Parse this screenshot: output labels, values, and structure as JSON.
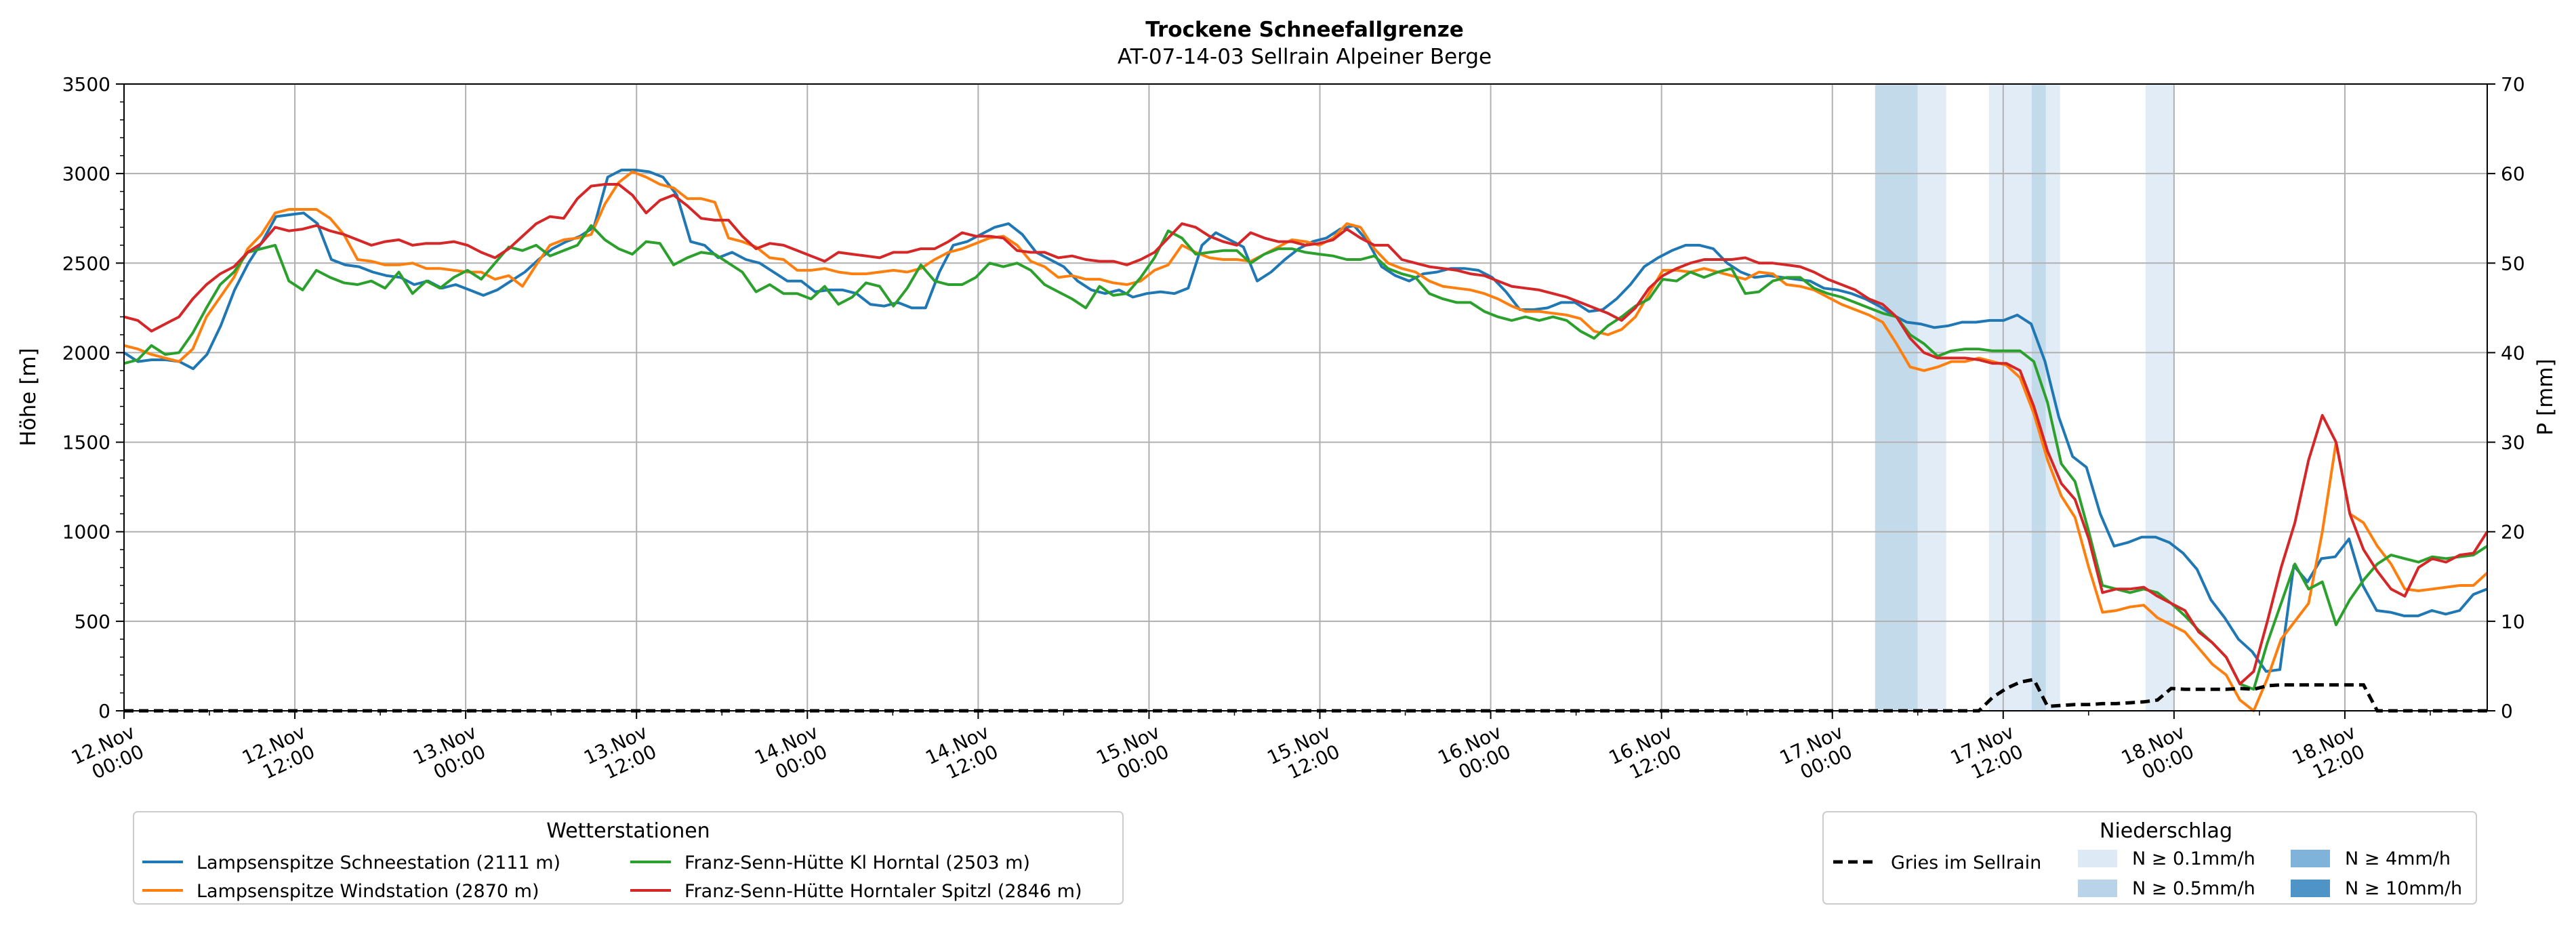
{
  "chart_data": {
    "type": "line",
    "title": "Trockene Schneefallgrenze",
    "subtitle": "AT-07-14-03 Sellrain Alpeiner Berge",
    "ylabel": "Höhe [m]",
    "ylabel_right": "P [mm]",
    "ylim": [
      0,
      3500
    ],
    "ylim_right": [
      0,
      70
    ],
    "yticks": [
      0,
      500,
      1000,
      1500,
      2000,
      2500,
      3000,
      3500
    ],
    "yticks_right": [
      0,
      10,
      20,
      30,
      40,
      50,
      60,
      70
    ],
    "x_start": "12.Nov 00:00",
    "x_end": "18.Nov 22:00",
    "x_hours_total": 166,
    "x_tick_labels": [
      [
        "12.Nov",
        "00:00"
      ],
      [
        "12.Nov",
        "12:00"
      ],
      [
        "13.Nov",
        "00:00"
      ],
      [
        "13.Nov",
        "12:00"
      ],
      [
        "14.Nov",
        "00:00"
      ],
      [
        "14.Nov",
        "12:00"
      ],
      [
        "15.Nov",
        "00:00"
      ],
      [
        "15.Nov",
        "12:00"
      ],
      [
        "16.Nov",
        "00:00"
      ],
      [
        "16.Nov",
        "12:00"
      ],
      [
        "17.Nov",
        "00:00"
      ],
      [
        "17.Nov",
        "12:00"
      ],
      [
        "18.Nov",
        "00:00"
      ],
      [
        "18.Nov",
        "12:00"
      ]
    ],
    "grid": true,
    "legend_placement": "bottom-left",
    "legend_title": "Wetterstationen",
    "series": [
      {
        "name": "Lampsenspitze Schneestation (2111 m)",
        "color": "#1f77b4",
        "values": [
          2000,
          1950,
          1960,
          1960,
          1950,
          1910,
          1990,
          2150,
          2350,
          2500,
          2620,
          2760,
          2770,
          2780,
          2720,
          2520,
          2490,
          2480,
          2450,
          2430,
          2420,
          2380,
          2400,
          2360,
          2380,
          2350,
          2320,
          2350,
          2400,
          2450,
          2520,
          2580,
          2620,
          2650,
          2700,
          2980,
          3020,
          3020,
          3010,
          2980,
          2880,
          2620,
          2600,
          2530,
          2560,
          2520,
          2500,
          2450,
          2400,
          2400,
          2340,
          2350,
          2350,
          2330,
          2270,
          2260,
          2280,
          2250,
          2250,
          2450,
          2600,
          2620,
          2660,
          2700,
          2720,
          2660,
          2560,
          2520,
          2480,
          2400,
          2350,
          2330,
          2350,
          2310,
          2330,
          2340,
          2330,
          2360,
          2600,
          2670,
          2630,
          2590,
          2400,
          2450,
          2520,
          2580,
          2620,
          2640,
          2690,
          2710,
          2620,
          2480,
          2430,
          2400,
          2440,
          2450,
          2470,
          2470,
          2460,
          2420,
          2340,
          2240,
          2240,
          2250,
          2280,
          2280,
          2230,
          2240,
          2300,
          2380,
          2480,
          2530,
          2570,
          2600,
          2600,
          2580,
          2500,
          2450,
          2420,
          2430,
          2420,
          2410,
          2400,
          2360,
          2350,
          2330,
          2300,
          2260,
          2210,
          2170,
          2160,
          2140,
          2150,
          2170,
          2170,
          2180,
          2180,
          2210,
          2160,
          1950,
          1640,
          1420,
          1360,
          1100,
          920,
          940,
          970,
          970,
          940,
          880,
          790,
          620,
          520,
          400,
          330,
          220,
          230,
          810,
          720,
          850,
          860,
          960,
          700,
          560,
          550,
          530,
          530,
          560,
          540,
          560,
          650,
          680
        ]
      },
      {
        "name": "Lampsenspitze Windstation (2870 m)",
        "color": "#ff7f0e",
        "values": [
          2040,
          2020,
          1990,
          1970,
          1950,
          2020,
          2200,
          2310,
          2420,
          2580,
          2660,
          2780,
          2800,
          2800,
          2800,
          2750,
          2660,
          2520,
          2510,
          2490,
          2490,
          2500,
          2470,
          2470,
          2460,
          2450,
          2450,
          2410,
          2430,
          2370,
          2490,
          2600,
          2630,
          2640,
          2660,
          2830,
          2950,
          3010,
          2980,
          2940,
          2920,
          2860,
          2860,
          2840,
          2640,
          2620,
          2590,
          2530,
          2520,
          2460,
          2460,
          2470,
          2450,
          2440,
          2440,
          2450,
          2460,
          2450,
          2470,
          2520,
          2560,
          2580,
          2610,
          2640,
          2650,
          2600,
          2510,
          2480,
          2420,
          2430,
          2410,
          2410,
          2390,
          2380,
          2400,
          2460,
          2490,
          2600,
          2560,
          2530,
          2520,
          2520,
          2510,
          2550,
          2590,
          2630,
          2620,
          2600,
          2640,
          2720,
          2700,
          2580,
          2500,
          2470,
          2450,
          2400,
          2370,
          2360,
          2350,
          2330,
          2300,
          2260,
          2230,
          2230,
          2220,
          2210,
          2190,
          2120,
          2100,
          2130,
          2200,
          2330,
          2460,
          2460,
          2450,
          2470,
          2450,
          2430,
          2410,
          2450,
          2440,
          2380,
          2370,
          2350,
          2310,
          2270,
          2240,
          2210,
          2170,
          2050,
          1920,
          1900,
          1920,
          1950,
          1950,
          1970,
          1950,
          1930,
          1860,
          1660,
          1400,
          1200,
          1080,
          800,
          550,
          560,
          580,
          590,
          520,
          480,
          440,
          350,
          260,
          200,
          60,
          0,
          180,
          400,
          500,
          600,
          1000,
          1500,
          1100,
          1050,
          920,
          820,
          680,
          670,
          680,
          690,
          700,
          700,
          770
        ]
      },
      {
        "name": "Franz-Senn-Hütte Kl Horntal (2503 m)",
        "color": "#2ca02c",
        "values": [
          1940,
          1960,
          2040,
          1990,
          2000,
          2110,
          2250,
          2380,
          2450,
          2560,
          2580,
          2600,
          2400,
          2350,
          2460,
          2420,
          2390,
          2380,
          2400,
          2360,
          2450,
          2330,
          2400,
          2360,
          2420,
          2460,
          2410,
          2500,
          2590,
          2570,
          2600,
          2540,
          2570,
          2600,
          2710,
          2630,
          2580,
          2550,
          2620,
          2610,
          2490,
          2530,
          2560,
          2550,
          2500,
          2450,
          2340,
          2380,
          2330,
          2330,
          2300,
          2370,
          2270,
          2310,
          2390,
          2370,
          2260,
          2360,
          2490,
          2400,
          2380,
          2380,
          2420,
          2500,
          2480,
          2500,
          2460,
          2380,
          2340,
          2300,
          2250,
          2370,
          2320,
          2330,
          2420,
          2530,
          2680,
          2640,
          2550,
          2560,
          2570,
          2570,
          2500,
          2550,
          2580,
          2580,
          2560,
          2550,
          2540,
          2520,
          2520,
          2540,
          2470,
          2440,
          2420,
          2330,
          2300,
          2280,
          2280,
          2230,
          2200,
          2180,
          2200,
          2180,
          2200,
          2180,
          2120,
          2080,
          2150,
          2200,
          2260,
          2300,
          2410,
          2400,
          2450,
          2420,
          2450,
          2470,
          2330,
          2340,
          2400,
          2420,
          2420,
          2360,
          2330,
          2310,
          2280,
          2250,
          2220,
          2200,
          2100,
          2050,
          1980,
          2010,
          2020,
          2020,
          2010,
          2010,
          2010,
          1950,
          1720,
          1380,
          1280,
          1000,
          700,
          680,
          660,
          680,
          660,
          600,
          530,
          450,
          380,
          300,
          150,
          120,
          380,
          600,
          820,
          680,
          720,
          480,
          620,
          730,
          820,
          870,
          850,
          830,
          860,
          850,
          860,
          870,
          920
        ]
      },
      {
        "name": "Franz-Senn-Hütte Horntaler Spitzl (2846 m)",
        "color": "#d62728",
        "values": [
          2200,
          2180,
          2120,
          2160,
          2200,
          2300,
          2380,
          2440,
          2480,
          2560,
          2610,
          2700,
          2680,
          2690,
          2710,
          2680,
          2660,
          2630,
          2600,
          2620,
          2630,
          2600,
          2610,
          2610,
          2620,
          2600,
          2560,
          2530,
          2580,
          2650,
          2720,
          2760,
          2750,
          2860,
          2930,
          2940,
          2940,
          2880,
          2780,
          2850,
          2880,
          2820,
          2750,
          2740,
          2740,
          2650,
          2580,
          2610,
          2600,
          2570,
          2540,
          2510,
          2560,
          2550,
          2540,
          2530,
          2560,
          2560,
          2580,
          2580,
          2620,
          2670,
          2650,
          2650,
          2640,
          2570,
          2560,
          2560,
          2530,
          2540,
          2520,
          2510,
          2510,
          2490,
          2520,
          2560,
          2640,
          2720,
          2700,
          2650,
          2620,
          2600,
          2670,
          2640,
          2620,
          2620,
          2600,
          2610,
          2630,
          2690,
          2640,
          2600,
          2600,
          2520,
          2500,
          2480,
          2470,
          2460,
          2440,
          2430,
          2400,
          2370,
          2360,
          2350,
          2330,
          2310,
          2280,
          2250,
          2220,
          2180,
          2250,
          2360,
          2430,
          2470,
          2500,
          2520,
          2520,
          2520,
          2530,
          2500,
          2500,
          2490,
          2480,
          2450,
          2410,
          2380,
          2350,
          2300,
          2270,
          2200,
          2080,
          2000,
          1970,
          1970,
          1970,
          1960,
          1940,
          1940,
          1900,
          1700,
          1450,
          1270,
          1180,
          960,
          660,
          680,
          680,
          690,
          640,
          600,
          560,
          440,
          380,
          300,
          150,
          220,
          500,
          800,
          1050,
          1400,
          1650,
          1500,
          1100,
          900,
          780,
          680,
          640,
          800,
          850,
          830,
          870,
          880,
          1000
        ]
      }
    ],
    "precip_legend_title": "Niederschlag",
    "precip_series": {
      "name": "Gries im Sellrain",
      "color": "#000000",
      "style": "dashed",
      "values": [
        0,
        0,
        0,
        0,
        0,
        0,
        0,
        0,
        0,
        0,
        0,
        0,
        0,
        0,
        0,
        0,
        0,
        0,
        0,
        0,
        0,
        0,
        0,
        0,
        0,
        0,
        0,
        0,
        0,
        0,
        0,
        0,
        0,
        0,
        0,
        0,
        0,
        0,
        0,
        0,
        0,
        0,
        0,
        0,
        0,
        0,
        0,
        0,
        0,
        0,
        0,
        0,
        0,
        0,
        0,
        0,
        0,
        0,
        0,
        0,
        0,
        0,
        0,
        0,
        0,
        0,
        0,
        0,
        0,
        0,
        0,
        0,
        0,
        0,
        0,
        0,
        0,
        0,
        0,
        0,
        0,
        0,
        0,
        0,
        0,
        0,
        0,
        0,
        0,
        0,
        0,
        0,
        0,
        0,
        0,
        0,
        0,
        0,
        0,
        0,
        0,
        0,
        0,
        0,
        0,
        0,
        0,
        0,
        0,
        0,
        0,
        0,
        0,
        0,
        0,
        0,
        0,
        0,
        0,
        0,
        0,
        0,
        0,
        0,
        0,
        0,
        0,
        0,
        0,
        0,
        0,
        0,
        0,
        0,
        0,
        0,
        1.5,
        2.5,
        3.2,
        3.5,
        0.5,
        0.6,
        0.7,
        0.7,
        0.8,
        0.8,
        0.9,
        1.0,
        1.2,
        2.5,
        2.4,
        2.4,
        2.4,
        2.4,
        2.5,
        2.4,
        2.8,
        2.9,
        2.9,
        2.9,
        2.9,
        2.9,
        2.9,
        2.9,
        0,
        0,
        0,
        0,
        0,
        0,
        0,
        0,
        0
      ]
    },
    "precip_intensity_bands": [
      {
        "start_hour": 123,
        "end_hour": 126,
        "class": "N ≥ 0.5mm/h"
      },
      {
        "start_hour": 126,
        "end_hour": 128,
        "class": "N ≥ 0.1mm/h"
      },
      {
        "start_hour": 131,
        "end_hour": 134,
        "class": "N ≥ 0.1mm/h"
      },
      {
        "start_hour": 134,
        "end_hour": 135,
        "class": "N ≥ 0.5mm/h"
      },
      {
        "start_hour": 135,
        "end_hour": 136,
        "class": "N ≥ 0.1mm/h"
      },
      {
        "start_hour": 142,
        "end_hour": 144,
        "class": "N ≥ 0.1mm/h"
      }
    ],
    "precip_classes": [
      {
        "label": "N ≥ 0.1mm/h",
        "color": "#dde9f5"
      },
      {
        "label": "N ≥ 0.5mm/h",
        "color": "#b9d3e8"
      },
      {
        "label": "N ≥ 4mm/h",
        "color": "#7fb3d9"
      },
      {
        "label": "N ≥ 10mm/h",
        "color": "#4e94c7"
      }
    ]
  }
}
